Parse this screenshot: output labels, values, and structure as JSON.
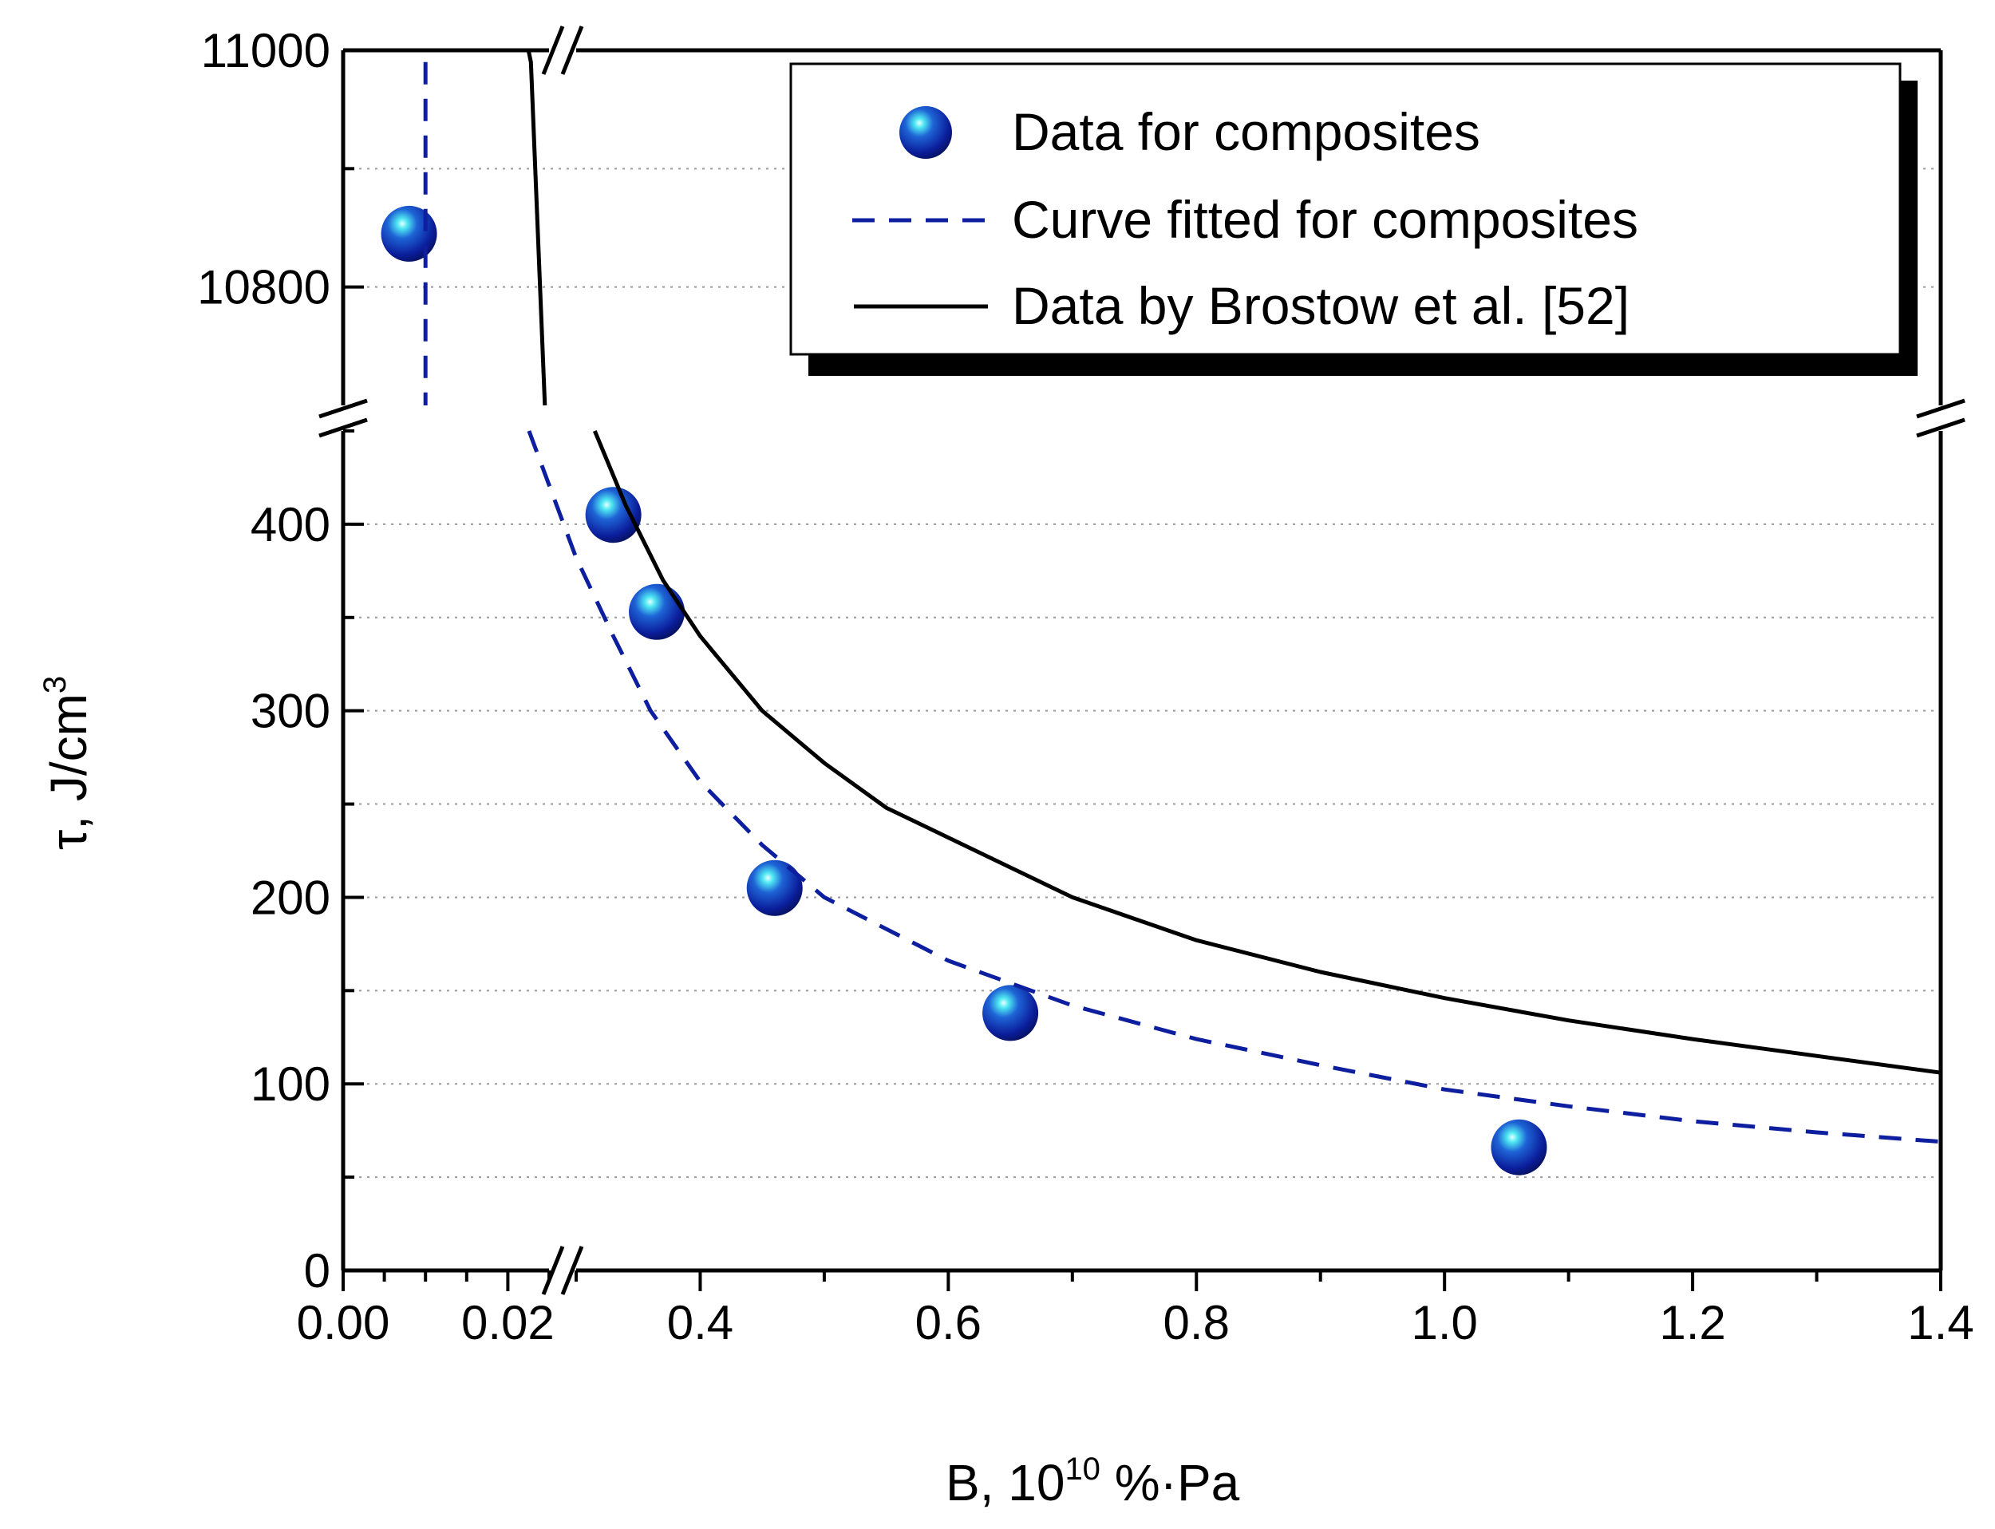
{
  "chart_data": {
    "type": "scatter",
    "title": "",
    "xlabel": "B, 10",
    "xlabel_sup": "10",
    "xlabel_unit": " %·Pa",
    "ylabel": "τ, J/cm",
    "ylabel_sup": "3",
    "axis_break": true,
    "x_segments": [
      {
        "range": [
          0.0,
          0.025
        ],
        "ticks": [
          0.0,
          0.02
        ],
        "tick_labels": [
          "0.00",
          "0.02"
        ]
      },
      {
        "range": [
          0.3,
          1.4
        ],
        "ticks": [
          0.4,
          0.6,
          0.8,
          1.0,
          1.2,
          1.4
        ],
        "tick_labels": [
          "0.4",
          "0.6",
          "0.8",
          "1.0",
          "1.2",
          "1.4"
        ]
      }
    ],
    "y_segments": [
      {
        "range": [
          0,
          450
        ],
        "ticks": [
          0,
          100,
          200,
          300,
          400
        ],
        "tick_labels": [
          "0",
          "100",
          "200",
          "300",
          "400"
        ]
      },
      {
        "range": [
          10700,
          11000
        ],
        "ticks": [
          10800,
          11000
        ],
        "tick_labels": [
          "10800",
          "11000"
        ]
      }
    ],
    "series": [
      {
        "name": "Data for composites",
        "kind": "points",
        "color": "#0d1f9e",
        "points": [
          {
            "x": 0.008,
            "y": 10845
          },
          {
            "x": 0.33,
            "y": 405
          },
          {
            "x": 0.365,
            "y": 353
          },
          {
            "x": 0.46,
            "y": 205
          },
          {
            "x": 0.65,
            "y": 138
          },
          {
            "x": 1.06,
            "y": 66
          }
        ]
      },
      {
        "name": "Curve fitted for composites",
        "kind": "dashed-line",
        "color": "#0d1f9e",
        "points": [
          {
            "x": 0.01,
            "y": 10990
          },
          {
            "x": 0.01,
            "y": 10700
          },
          {
            "x": 0.262,
            "y": 450
          },
          {
            "x": 0.3,
            "y": 382
          },
          {
            "x": 0.33,
            "y": 340
          },
          {
            "x": 0.36,
            "y": 300
          },
          {
            "x": 0.4,
            "y": 262
          },
          {
            "x": 0.45,
            "y": 228
          },
          {
            "x": 0.5,
            "y": 200
          },
          {
            "x": 0.6,
            "y": 166
          },
          {
            "x": 0.7,
            "y": 142
          },
          {
            "x": 0.8,
            "y": 124
          },
          {
            "x": 0.9,
            "y": 110
          },
          {
            "x": 1.0,
            "y": 97
          },
          {
            "x": 1.1,
            "y": 88
          },
          {
            "x": 1.2,
            "y": 80
          },
          {
            "x": 1.3,
            "y": 74
          },
          {
            "x": 1.4,
            "y": 69
          }
        ]
      },
      {
        "name": "Data by Brostow et al. [52]",
        "kind": "solid-line",
        "color": "#000000",
        "points": [
          {
            "x": 0.0225,
            "y": 11000
          },
          {
            "x": 0.0228,
            "y": 10990
          },
          {
            "x": 0.0245,
            "y": 10700
          },
          {
            "x": 0.315,
            "y": 450
          },
          {
            "x": 0.34,
            "y": 410
          },
          {
            "x": 0.37,
            "y": 370
          },
          {
            "x": 0.4,
            "y": 340
          },
          {
            "x": 0.45,
            "y": 300
          },
          {
            "x": 0.5,
            "y": 272
          },
          {
            "x": 0.55,
            "y": 248
          },
          {
            "x": 0.6,
            "y": 232
          },
          {
            "x": 0.7,
            "y": 200
          },
          {
            "x": 0.8,
            "y": 177
          },
          {
            "x": 0.9,
            "y": 160
          },
          {
            "x": 1.0,
            "y": 146
          },
          {
            "x": 1.1,
            "y": 134
          },
          {
            "x": 1.2,
            "y": 124
          },
          {
            "x": 1.3,
            "y": 115
          },
          {
            "x": 1.4,
            "y": 106
          }
        ]
      }
    ],
    "legend": {
      "position": "top-right",
      "entries": [
        {
          "label": "Data for composites",
          "marker": "sphere"
        },
        {
          "label": "Curve fitted for composites",
          "marker": "dashed"
        },
        {
          "label": "Data by Brostow et al. [52]",
          "marker": "solid"
        }
      ]
    }
  }
}
